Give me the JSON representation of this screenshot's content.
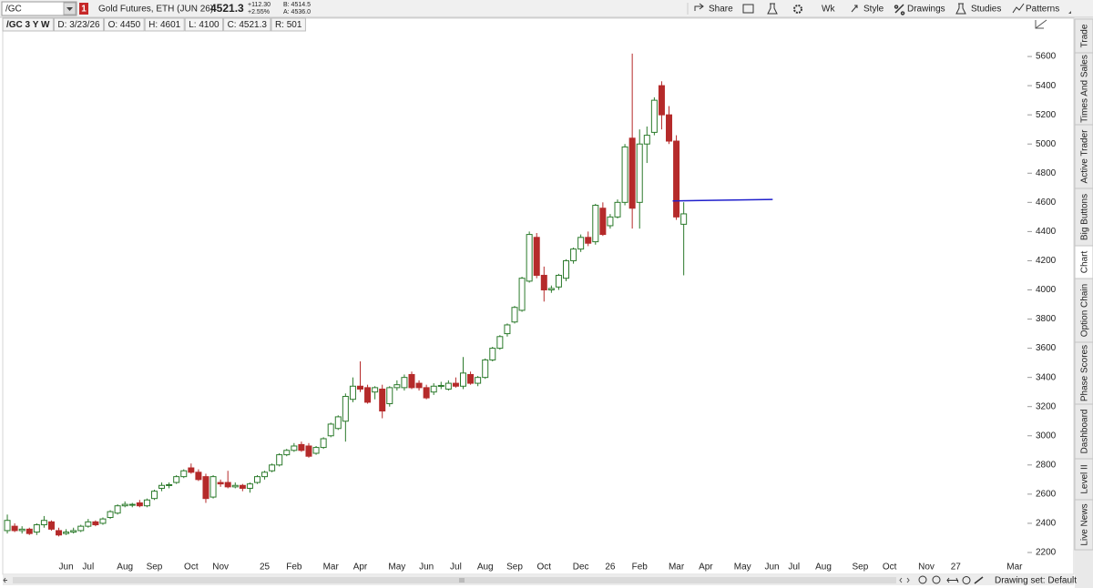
{
  "toolbar": {
    "symbol": "/GC",
    "flag": "1",
    "description": "Gold Futures, ETH (JUN 26)",
    "last": "4521.3",
    "change": "+112.30",
    "change_pct": "+2.55%",
    "bid": "B: 4514.5",
    "ask": "A: 4536.0",
    "buttons": [
      "Share",
      "Wk",
      "Style",
      "Drawings",
      "Studies",
      "Patterns"
    ]
  },
  "chart_header": [
    "/GC 3 Y W",
    "D: 3/23/26",
    "O: 4450",
    "H: 4601",
    "L: 4100",
    "C: 4521.3",
    "R: 501"
  ],
  "side_tabs": [
    "Trade",
    "Times And Sales",
    "Active Trader",
    "Big Buttons",
    "Chart",
    "Option Chain",
    "Phase Scores",
    "Dashboard",
    "Level II",
    "Live News"
  ],
  "footer": {
    "drawing_set": "Drawing set: Default"
  },
  "chart_data": {
    "type": "candlestick",
    "grid": false,
    "up_color": "#2b7a2b",
    "down_color": "#b52a2a",
    "ylim": [
      2150,
      5800
    ],
    "yticks": [
      2200,
      2400,
      2600,
      2800,
      3000,
      3200,
      3400,
      3600,
      3800,
      4000,
      4200,
      4400,
      4600,
      4800,
      5000,
      5200,
      5400,
      5600
    ],
    "categories": [
      null,
      null,
      null,
      null,
      null,
      null,
      null,
      null,
      "Jun",
      null,
      null,
      "Jul",
      null,
      null,
      null,
      null,
      "Aug",
      null,
      null,
      null,
      "Sep",
      null,
      null,
      null,
      null,
      "Oct",
      null,
      null,
      null,
      "Nov",
      null,
      null,
      null,
      null,
      null,
      "25",
      null,
      null,
      null,
      "Feb",
      null,
      null,
      null,
      null,
      "Mar",
      null,
      null,
      null,
      "Apr",
      null,
      null,
      null,
      null,
      "May",
      null,
      null,
      null,
      "Jun",
      null,
      null,
      null,
      "Jul",
      null,
      null,
      null,
      "Aug",
      null,
      null,
      null,
      "Sep",
      null,
      null,
      null,
      "Oct",
      null,
      null,
      null,
      null,
      "Dec",
      null,
      null,
      null,
      "26",
      null,
      null,
      null,
      "Feb",
      null,
      null,
      null,
      null,
      "Mar",
      null,
      null,
      null,
      "Apr",
      null,
      null,
      null,
      null,
      "May",
      null,
      null,
      null,
      "Jun",
      null,
      null,
      "Jul",
      null,
      null,
      null,
      "Aug",
      null,
      null,
      null,
      null,
      "Sep",
      null,
      null,
      null,
      "Oct",
      null,
      null,
      null,
      null,
      "Nov",
      null,
      null,
      null,
      "27",
      null,
      null,
      null,
      null,
      null,
      null,
      null,
      "Mar",
      null
    ],
    "open": [
      2350,
      2380,
      2350,
      2360,
      2340,
      2390,
      2410,
      2350,
      2330,
      2340,
      2350,
      2380,
      2410,
      2400,
      2440,
      2470,
      2520,
      2530,
      2540,
      2520,
      2570,
      2640,
      2660,
      2680,
      2720,
      2780,
      2750,
      2720,
      2580,
      2680,
      2680,
      2650,
      2660,
      2640,
      2680,
      2720,
      2760,
      2800,
      2870,
      2900,
      2940,
      2930,
      2880,
      2920,
      3000,
      3050,
      3100,
      3250,
      3340,
      3330,
      3300,
      3320,
      3220,
      3330,
      3330,
      3420,
      3360,
      3330,
      3300,
      3340,
      3320,
      3360,
      3340,
      3420,
      3360,
      3400,
      3520,
      3600,
      3700,
      3780,
      3860,
      4060,
      4360,
      4100,
      4000,
      4020,
      4080,
      4200,
      4280,
      4360,
      4330,
      4560,
      4440,
      4500,
      4600,
      5040,
      4600,
      5000,
      5080,
      5400,
      5200,
      5020,
      4450,
      null,
      null,
      null,
      null,
      null,
      null,
      null,
      null,
      null,
      null,
      null,
      null,
      null,
      null,
      null,
      null,
      null,
      null,
      null,
      null,
      null,
      null,
      null,
      null,
      null,
      null,
      null,
      null,
      null,
      null,
      null,
      null,
      null,
      null,
      null,
      null,
      null,
      null,
      null,
      null,
      null,
      null,
      null,
      null,
      null,
      null
    ],
    "high": [
      2460,
      2400,
      2380,
      2370,
      2400,
      2450,
      2420,
      2370,
      2360,
      2370,
      2390,
      2430,
      2420,
      2440,
      2490,
      2530,
      2550,
      2540,
      2560,
      2570,
      2630,
      2680,
      2680,
      2730,
      2770,
      2810,
      2770,
      2740,
      2730,
      2700,
      2760,
      2680,
      2670,
      2680,
      2730,
      2760,
      2810,
      2880,
      2910,
      2950,
      2960,
      2950,
      2930,
      2990,
      3090,
      3140,
      3290,
      3400,
      3510,
      3350,
      3340,
      3350,
      3340,
      3380,
      3420,
      3440,
      3380,
      3350,
      3360,
      3370,
      3380,
      3400,
      3540,
      3440,
      3410,
      3530,
      3610,
      3690,
      3770,
      3890,
      4090,
      4400,
      4390,
      4160,
      4030,
      4110,
      4210,
      4290,
      4380,
      4400,
      4590,
      4600,
      4520,
      4620,
      5000,
      5620,
      5100,
      5120,
      5320,
      5430,
      5260,
      5060,
      4601,
      null,
      null,
      null,
      null,
      null,
      null,
      null,
      null,
      null,
      null,
      null,
      null,
      null,
      null,
      null,
      null,
      null,
      null,
      null,
      null,
      null,
      null,
      null,
      null,
      null,
      null,
      null,
      null,
      null,
      null,
      null,
      null,
      null,
      null,
      null,
      null,
      null,
      null,
      null,
      null,
      null,
      null,
      null,
      null,
      null,
      null
    ],
    "low": [
      2330,
      2340,
      2330,
      2320,
      2320,
      2370,
      2350,
      2310,
      2320,
      2330,
      2340,
      2370,
      2380,
      2390,
      2430,
      2460,
      2510,
      2510,
      2510,
      2510,
      2560,
      2620,
      2640,
      2670,
      2710,
      2740,
      2690,
      2540,
      2570,
      2650,
      2640,
      2640,
      2620,
      2610,
      2670,
      2700,
      2750,
      2790,
      2860,
      2890,
      2890,
      2850,
      2870,
      2910,
      2990,
      3040,
      2960,
      3230,
      3300,
      3220,
      3250,
      3120,
      3200,
      3310,
      3310,
      3320,
      3310,
      3250,
      3280,
      3320,
      3310,
      3330,
      3320,
      3350,
      3340,
      3390,
      3510,
      3590,
      3680,
      3770,
      3850,
      4050,
      4080,
      3920,
      3980,
      4000,
      4060,
      4180,
      4260,
      4300,
      4310,
      4370,
      4420,
      4490,
      4580,
      4420,
      4420,
      4870,
      5060,
      5100,
      5000,
      4480,
      4100,
      null,
      null,
      null,
      null,
      null,
      null,
      null,
      null,
      null,
      null,
      null,
      null,
      null,
      null,
      null,
      null,
      null,
      null,
      null,
      null,
      null,
      null,
      null,
      null,
      null,
      null,
      null,
      null,
      null,
      null,
      null,
      null,
      null,
      null,
      null,
      null,
      null,
      null,
      null,
      null,
      null,
      null,
      null,
      null,
      null,
      null
    ],
    "close": [
      2420,
      2350,
      2360,
      2330,
      2390,
      2420,
      2360,
      2320,
      2340,
      2350,
      2380,
      2410,
      2390,
      2430,
      2480,
      2520,
      2530,
      2530,
      2520,
      2560,
      2620,
      2660,
      2665,
      2720,
      2760,
      2750,
      2700,
      2570,
      2720,
      2670,
      2650,
      2660,
      2640,
      2670,
      2720,
      2750,
      2800,
      2870,
      2900,
      2930,
      2900,
      2860,
      2920,
      2980,
      3080,
      3130,
      3270,
      3340,
      3320,
      3230,
      3330,
      3170,
      3330,
      3350,
      3400,
      3330,
      3330,
      3260,
      3340,
      3345,
      3360,
      3340,
      3430,
      3360,
      3400,
      3520,
      3600,
      3680,
      3760,
      3880,
      4080,
      4380,
      4100,
      4000,
      4010,
      4100,
      4200,
      4280,
      4360,
      4320,
      4580,
      4380,
      4500,
      4600,
      4980,
      4560,
      5000,
      5060,
      5300,
      5200,
      5020,
      4500,
      4521.3,
      null,
      null,
      null,
      null,
      null,
      null,
      null,
      null,
      null,
      null,
      null,
      null,
      null,
      null,
      null,
      null,
      null,
      null,
      null,
      null,
      null,
      null,
      null,
      null,
      null,
      null,
      null,
      null,
      null,
      null,
      null,
      null,
      null,
      null,
      null,
      null,
      null,
      null,
      null,
      null,
      null,
      null,
      null,
      null,
      null,
      null
    ],
    "drawing": {
      "color": "#1f1fcc",
      "values": [
        4610,
        4620
      ]
    }
  }
}
